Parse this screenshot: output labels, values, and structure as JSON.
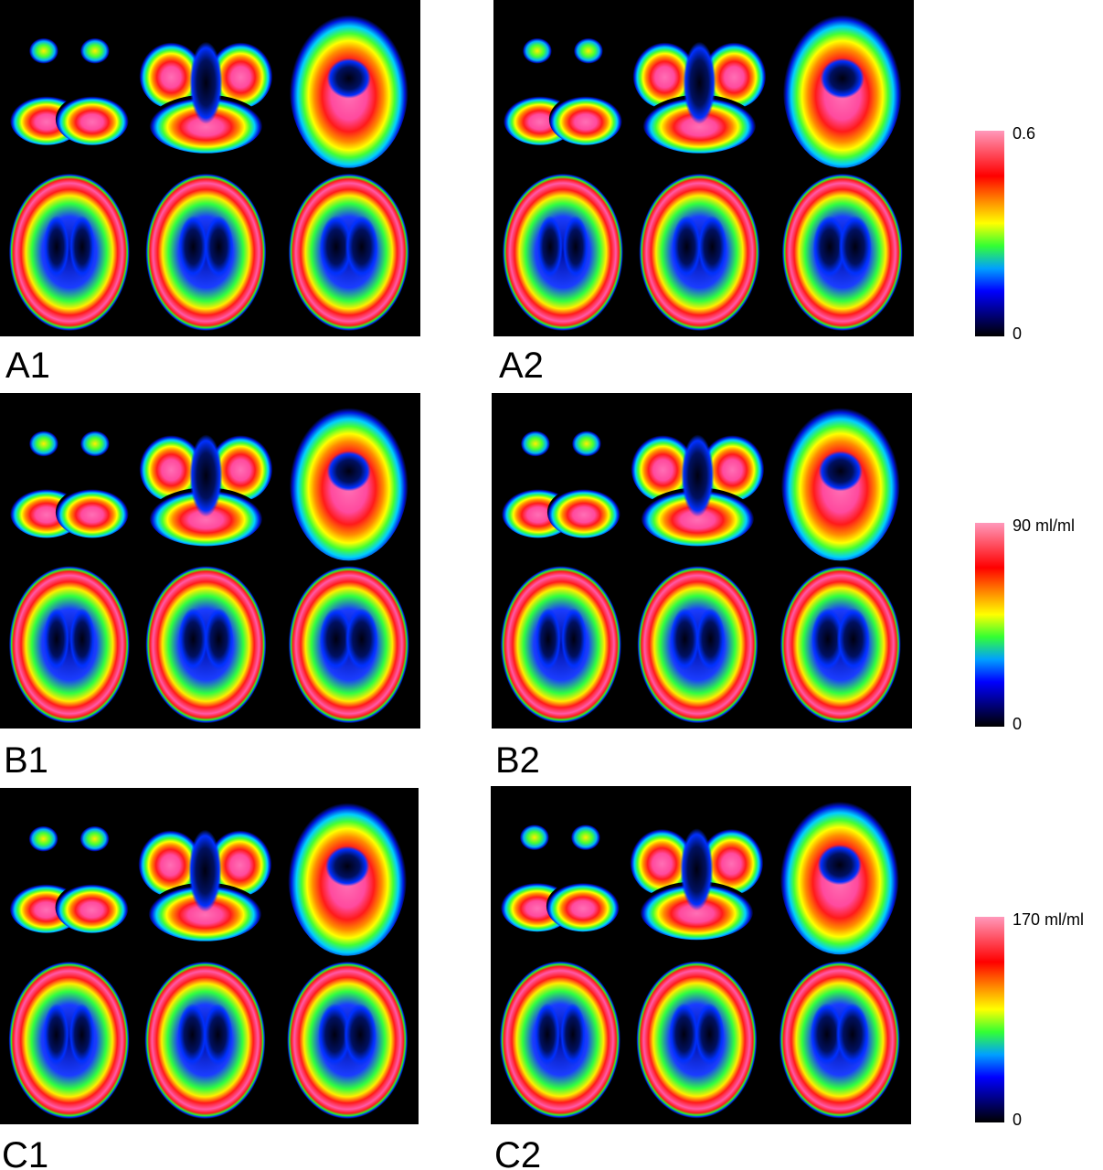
{
  "panels": [
    {
      "label": "A1"
    },
    {
      "label": "A2"
    },
    {
      "label": "B1"
    },
    {
      "label": "B2"
    },
    {
      "label": "C1"
    },
    {
      "label": "C2"
    }
  ],
  "colorbars": [
    {
      "max_label": "0.6",
      "min_label": "0"
    },
    {
      "max_label": "90 ml/ml",
      "min_label": "0"
    },
    {
      "max_label": "170 ml/ml",
      "min_label": "0"
    }
  ]
}
